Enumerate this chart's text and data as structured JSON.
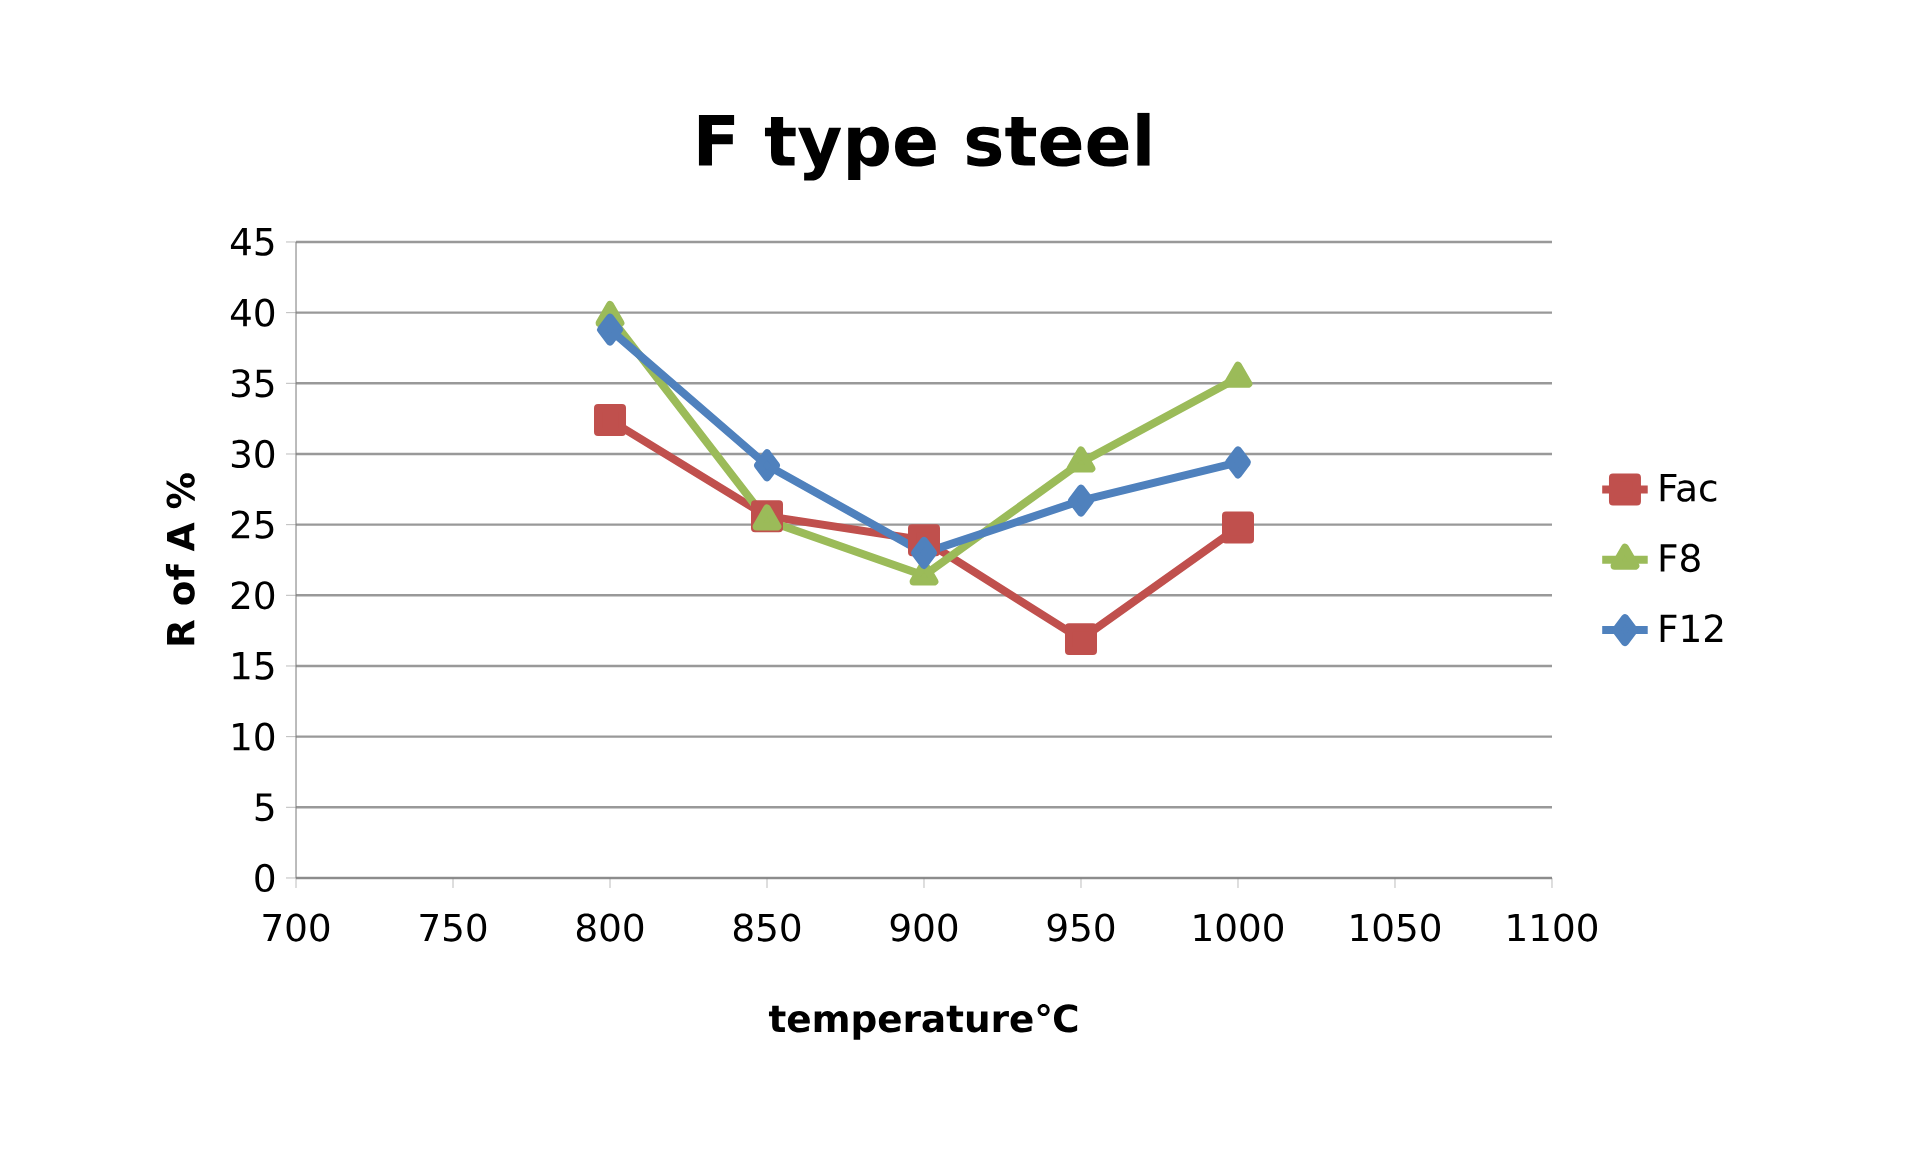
{
  "chart_data": {
    "type": "line",
    "title": "F type steel",
    "xlabel": "temperature℃",
    "ylabel": "R of A %",
    "x": [
      800,
      850,
      900,
      950,
      1000
    ],
    "series": [
      {
        "name": "Fac",
        "color": "#c0504d",
        "marker": "square",
        "values": [
          32.4,
          25.6,
          23.9,
          16.9,
          24.8
        ]
      },
      {
        "name": "F8",
        "color": "#9bbb59",
        "marker": "triangle",
        "values": [
          39.7,
          25.3,
          21.4,
          29.4,
          35.4
        ]
      },
      {
        "name": "F12",
        "color": "#4f81bd",
        "marker": "diamond",
        "values": [
          38.8,
          29.2,
          23.0,
          26.7,
          29.4
        ]
      }
    ],
    "xlim": [
      700,
      1100
    ],
    "xticks": [
      700,
      750,
      800,
      850,
      900,
      950,
      1000,
      1050,
      1100
    ],
    "ylim": [
      0,
      45
    ],
    "yticks": [
      0,
      5,
      10,
      15,
      20,
      25,
      30,
      35,
      40,
      45
    ],
    "grid": "y",
    "legend": "right",
    "line_style": "solid"
  }
}
